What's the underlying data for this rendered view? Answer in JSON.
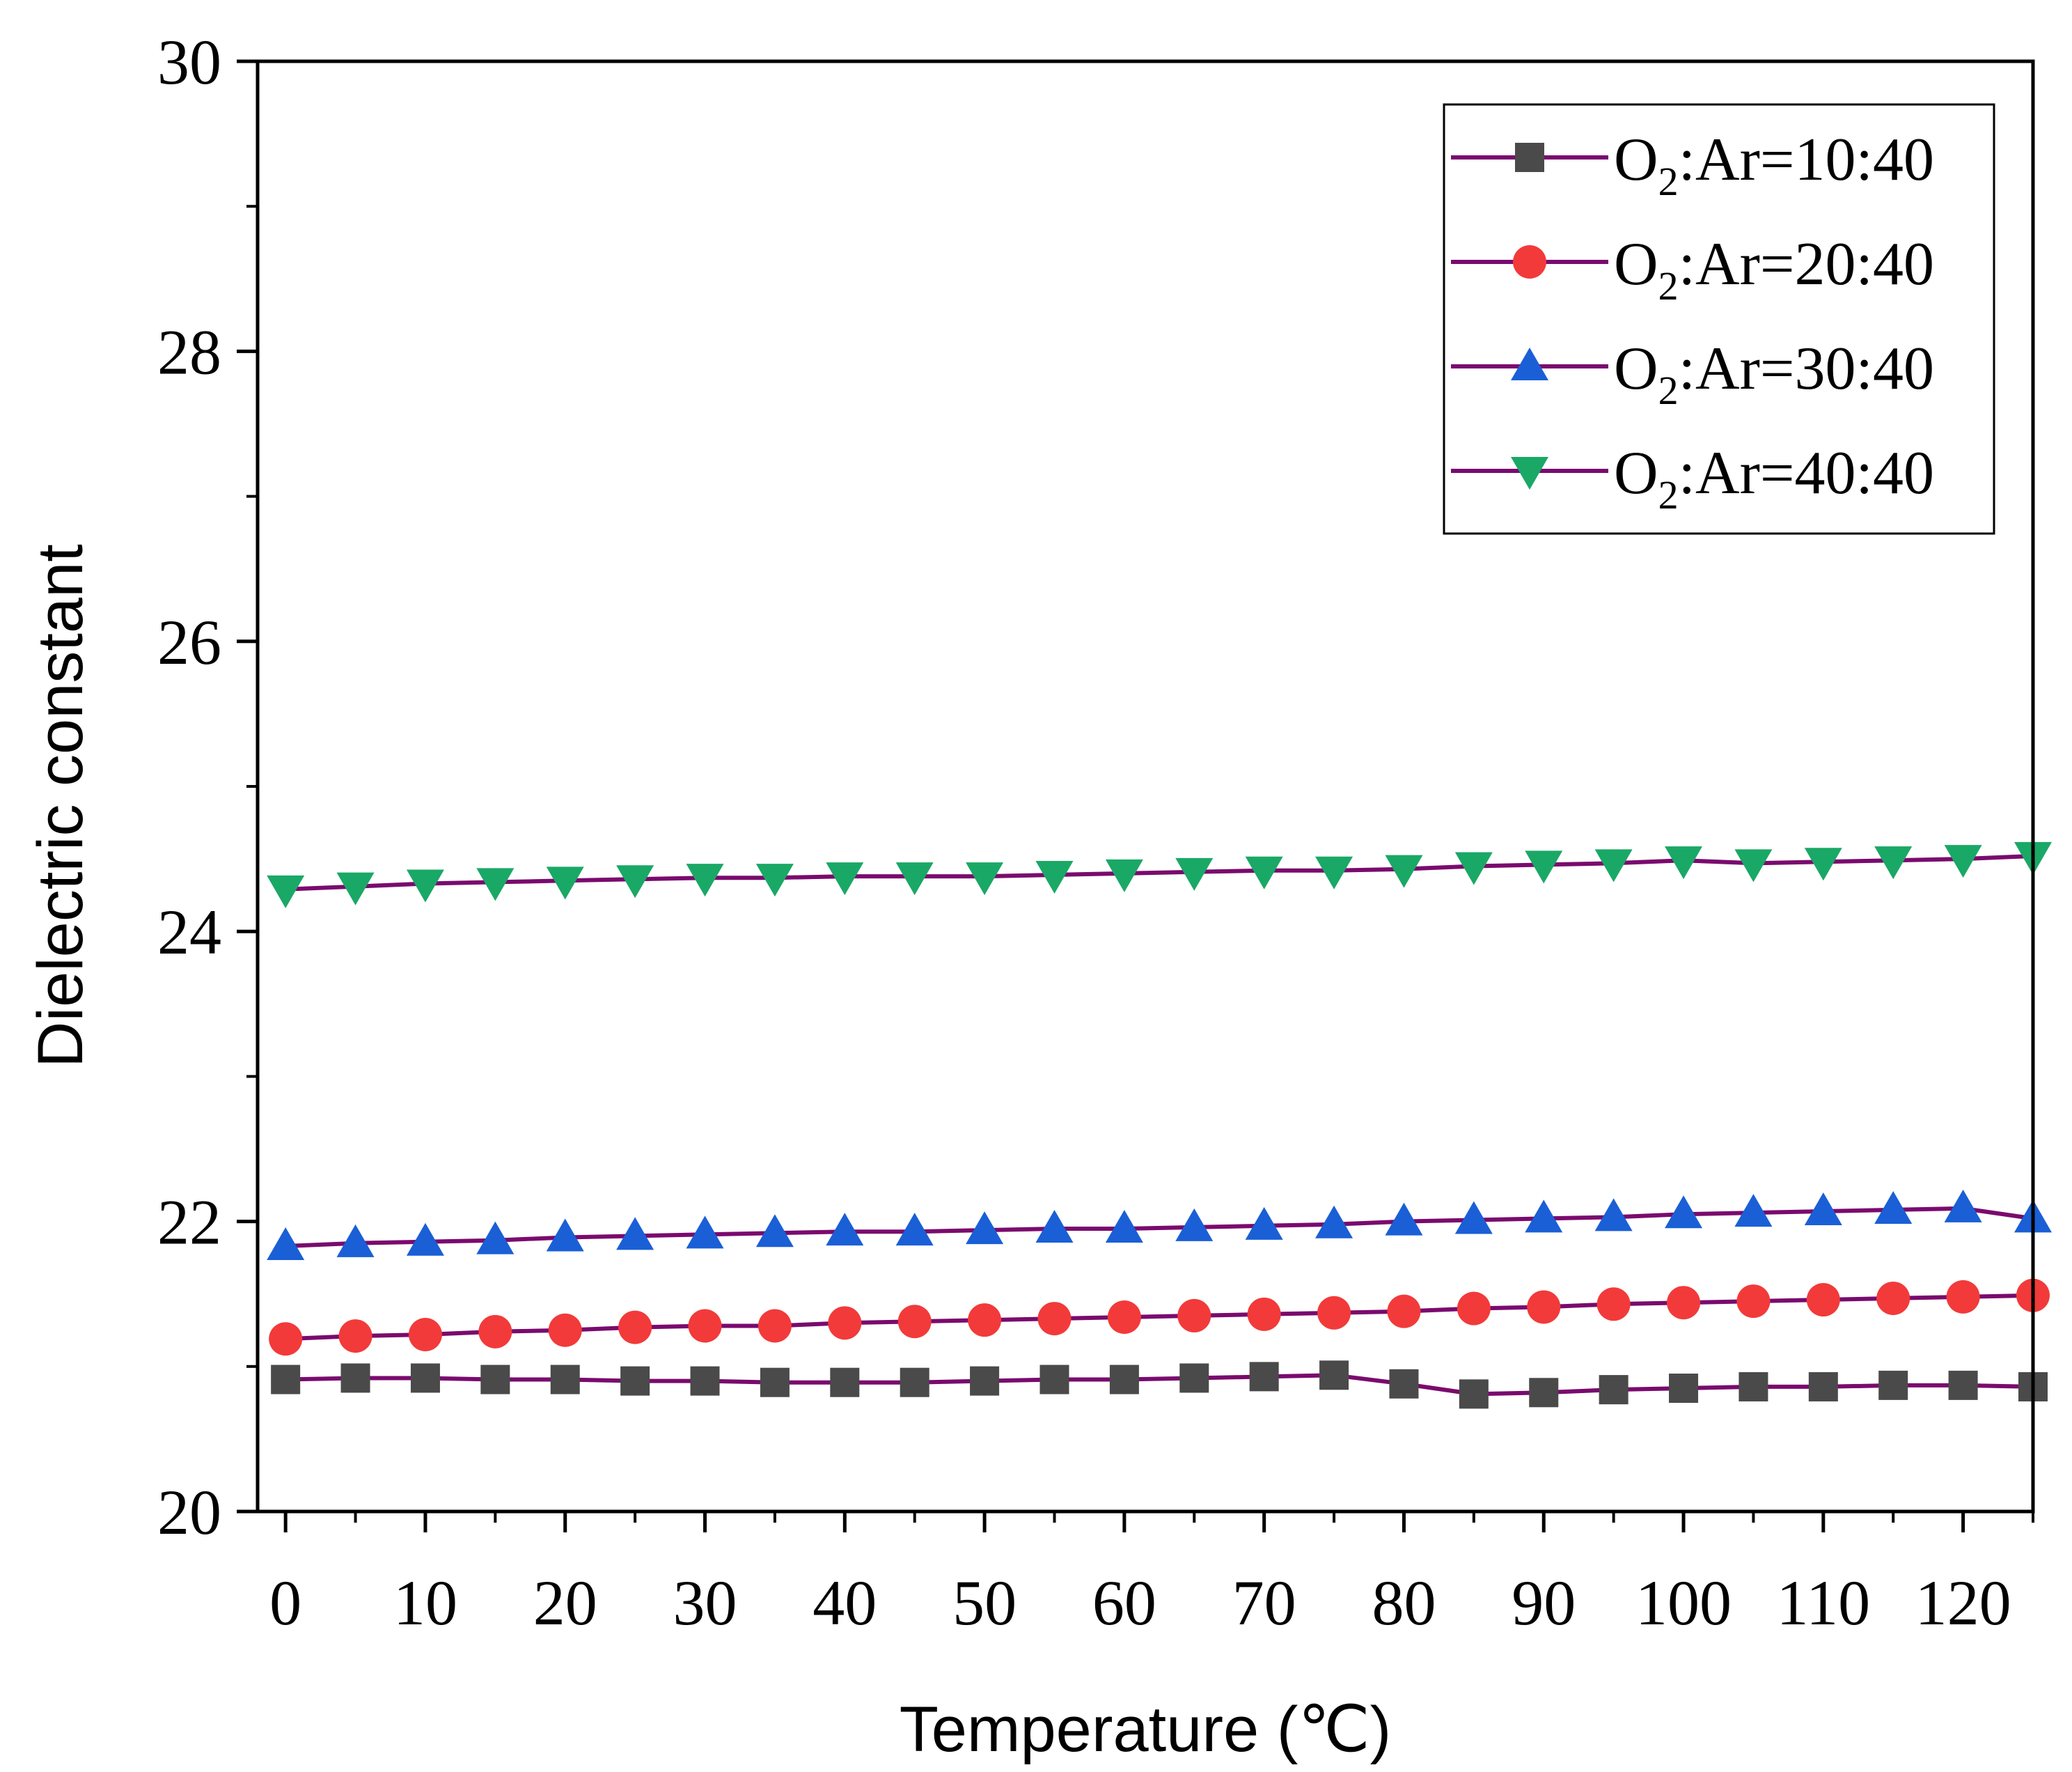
{
  "chart_data": {
    "type": "line",
    "title": "",
    "xlabel": "Temperature (℃)",
    "ylabel": "Dielectric constant",
    "xlim": [
      -2,
      125
    ],
    "ylim": [
      20,
      30
    ],
    "xticks": [
      0,
      10,
      20,
      30,
      40,
      50,
      60,
      70,
      80,
      90,
      100,
      110,
      120
    ],
    "yticks": [
      20,
      22,
      24,
      26,
      28,
      30
    ],
    "grid": false,
    "legend_position": "top-right",
    "line_color": "#7a0a6e",
    "x": [
      0,
      5,
      10,
      15,
      20,
      25,
      30,
      35,
      40,
      45,
      50,
      55,
      60,
      65,
      70,
      75,
      80,
      85,
      90,
      95,
      100,
      105,
      110,
      115,
      120,
      125
    ],
    "series": [
      {
        "name": "O2:Ar=10:40",
        "label_main": "O",
        "label_sub": "2",
        "label_rest": ":Ar=10:40",
        "marker": "square",
        "color": "#4a4a4a",
        "values": [
          20.91,
          20.92,
          20.92,
          20.91,
          20.91,
          20.9,
          20.9,
          20.89,
          20.89,
          20.89,
          20.9,
          20.91,
          20.91,
          20.92,
          20.93,
          20.94,
          20.88,
          20.81,
          20.82,
          20.84,
          20.85,
          20.86,
          20.86,
          20.87,
          20.87,
          20.86
        ]
      },
      {
        "name": "O2:Ar=20:40",
        "label_main": "O",
        "label_sub": "2",
        "label_rest": ":Ar=20:40",
        "marker": "circle",
        "color": "#f23a3a",
        "values": [
          21.19,
          21.21,
          21.22,
          21.24,
          21.25,
          21.27,
          21.28,
          21.28,
          21.3,
          21.31,
          21.32,
          21.33,
          21.34,
          21.35,
          21.36,
          21.37,
          21.38,
          21.4,
          21.41,
          21.43,
          21.44,
          21.45,
          21.46,
          21.47,
          21.48,
          21.49
        ]
      },
      {
        "name": "O2:Ar=30:40",
        "label_main": "O",
        "label_sub": "2",
        "label_rest": ":Ar=30:40",
        "marker": "triangle-up",
        "color": "#1a5fd6",
        "values": [
          21.83,
          21.85,
          21.86,
          21.87,
          21.89,
          21.9,
          21.91,
          21.92,
          21.93,
          21.93,
          21.94,
          21.95,
          21.95,
          21.96,
          21.97,
          21.98,
          22.0,
          22.01,
          22.02,
          22.03,
          22.05,
          22.06,
          22.07,
          22.08,
          22.09,
          22.02
        ]
      },
      {
        "name": "O2:Ar=40:40",
        "label_main": "O",
        "label_sub": "2",
        "label_rest": ":Ar=40:40",
        "marker": "triangle-down",
        "color": "#1aa866",
        "values": [
          24.29,
          24.31,
          24.33,
          24.34,
          24.35,
          24.36,
          24.37,
          24.37,
          24.38,
          24.38,
          24.38,
          24.39,
          24.4,
          24.41,
          24.42,
          24.42,
          24.43,
          24.45,
          24.46,
          24.47,
          24.49,
          24.47,
          24.48,
          24.49,
          24.5,
          24.52
        ]
      }
    ]
  }
}
